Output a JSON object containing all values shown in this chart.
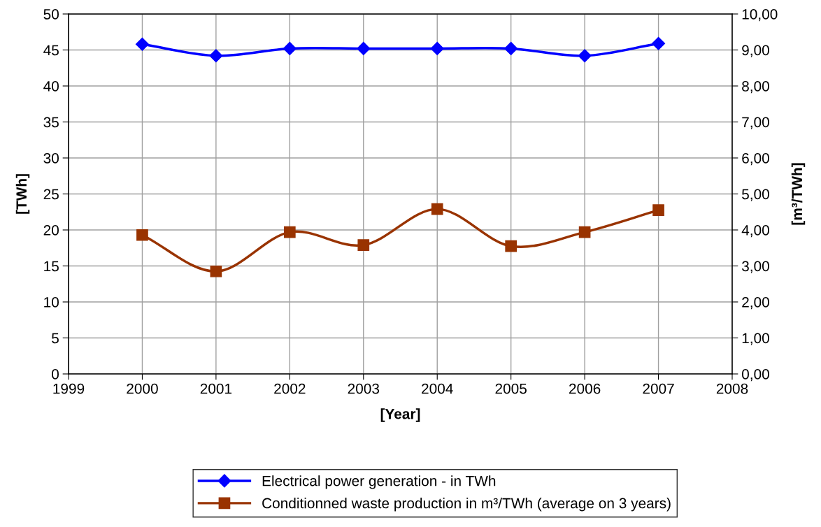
{
  "chart_data": {
    "type": "line",
    "xlabel": "[Year]",
    "ylabel": "[TWh]",
    "y2label": "[m³/TWh]",
    "x": [
      2000,
      2001,
      2002,
      2003,
      2004,
      2005,
      2006,
      2007
    ],
    "xlim": [
      1999,
      2008
    ],
    "xticks": [
      1999,
      2000,
      2001,
      2002,
      2003,
      2004,
      2005,
      2006,
      2007,
      2008
    ],
    "ylim": [
      0,
      50
    ],
    "yticks": [
      0,
      5,
      10,
      15,
      20,
      25,
      30,
      35,
      40,
      45,
      50
    ],
    "y2lim": [
      0,
      10
    ],
    "y2ticks": [
      {
        "value": 0,
        "label": "0,00"
      },
      {
        "value": 1,
        "label": "1,00"
      },
      {
        "value": 2,
        "label": "2,00"
      },
      {
        "value": 3,
        "label": "3,00"
      },
      {
        "value": 4,
        "label": "4,00"
      },
      {
        "value": 5,
        "label": "5,00"
      },
      {
        "value": 6,
        "label": "6,00"
      },
      {
        "value": 7,
        "label": "7,00"
      },
      {
        "value": 8,
        "label": "8,00"
      },
      {
        "value": 9,
        "label": "9,00"
      },
      {
        "value": 10,
        "label": "10,00"
      }
    ],
    "series": [
      {
        "name": "Electrical power generation - in TWh",
        "color": "#0000ff",
        "marker": "diamond",
        "values": [
          45.8,
          44.2,
          45.2,
          45.2,
          45.2,
          45.2,
          44.2,
          45.9
        ]
      },
      {
        "name": "Conditionned waste production in m³/TWh (average on 3 years)",
        "color": "#993300",
        "marker": "square",
        "axis": "y2",
        "values": [
          3.86,
          2.85,
          3.94,
          3.58,
          4.58,
          3.55,
          3.94,
          4.55
        ]
      }
    ],
    "grid": true,
    "legend": "bottom",
    "line_style": "solid"
  }
}
